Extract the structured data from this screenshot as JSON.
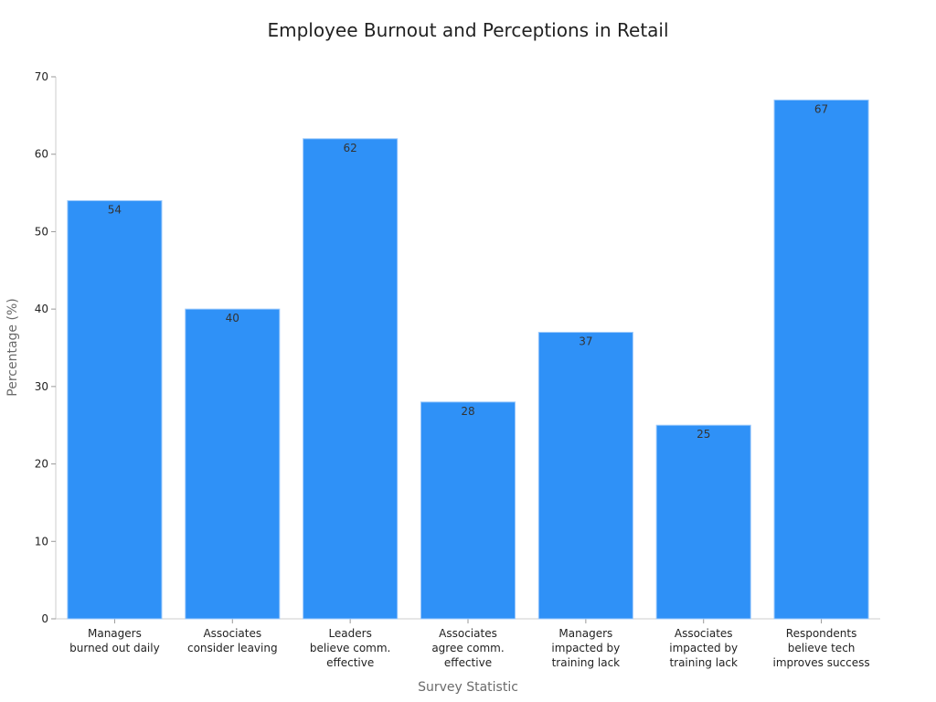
{
  "chart_data": {
    "type": "bar",
    "title": "Employee Burnout and Perceptions in Retail",
    "xlabel": "Survey Statistic",
    "ylabel": "Percentage (%)",
    "ylim": [
      0,
      70
    ],
    "yticks": [
      0,
      10,
      20,
      30,
      40,
      50,
      60,
      70
    ],
    "categories": [
      [
        "Managers",
        "burned out daily"
      ],
      [
        "Associates",
        "consider leaving"
      ],
      [
        "Leaders",
        "believe comm.",
        "effective"
      ],
      [
        "Associates",
        "agree comm.",
        "effective"
      ],
      [
        "Managers",
        "impacted by",
        "training lack"
      ],
      [
        "Associates",
        "impacted by",
        "training lack"
      ],
      [
        "Respondents",
        "believe tech",
        "improves success"
      ]
    ],
    "values": [
      54,
      40,
      62,
      28,
      37,
      25,
      67
    ],
    "data_labels": [
      "54",
      "40",
      "62",
      "28",
      "37",
      "25",
      "67"
    ],
    "bar_color": "#2f91f7",
    "bar_edge_color": "#9cc9fb",
    "grid": false,
    "legend": "none"
  }
}
